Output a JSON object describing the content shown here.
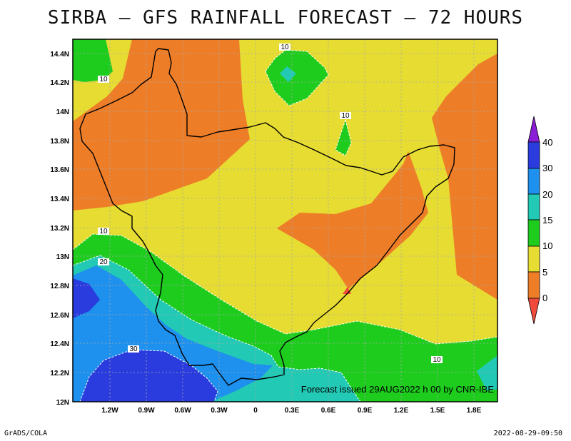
{
  "title": "SIRBA – GFS RAINFALL FORECAST – 72 HOURS",
  "forecast_note": "Forecast issued 29AUG2022 h 00 by CNR-IBE",
  "footer": {
    "left": "GrADS/COLA",
    "right": "2022-08-29-09:50"
  },
  "axes": {
    "x_ticks": [
      "1.2W",
      "0.9W",
      "0.6W",
      "0.3W",
      "0",
      "0.3E",
      "0.6E",
      "0.9E",
      "1.2E",
      "1.5E",
      "1.8E"
    ],
    "y_ticks": [
      "12N",
      "12.2N",
      "12.4N",
      "12.6N",
      "12.8N",
      "13N",
      "13.2N",
      "13.4N",
      "13.6N",
      "13.8N",
      "14N",
      "14.2N",
      "14.4N"
    ]
  },
  "colorbar": {
    "levels": [
      "0",
      "5",
      "10",
      "15",
      "20",
      "30",
      "40"
    ],
    "colors": {
      "below_0": "#f04a3c",
      "0_5": "#ee7d28",
      "5_10": "#e6dc32",
      "10_15": "#1ecc1e",
      "15_20": "#22c9b4",
      "20_30": "#1e90ee",
      "30_40": "#2a3cde",
      "above_40": "#8a1ed6"
    }
  },
  "contour_labels": [
    "10",
    "10",
    "10",
    "10",
    "20",
    "30",
    "10"
  ]
}
